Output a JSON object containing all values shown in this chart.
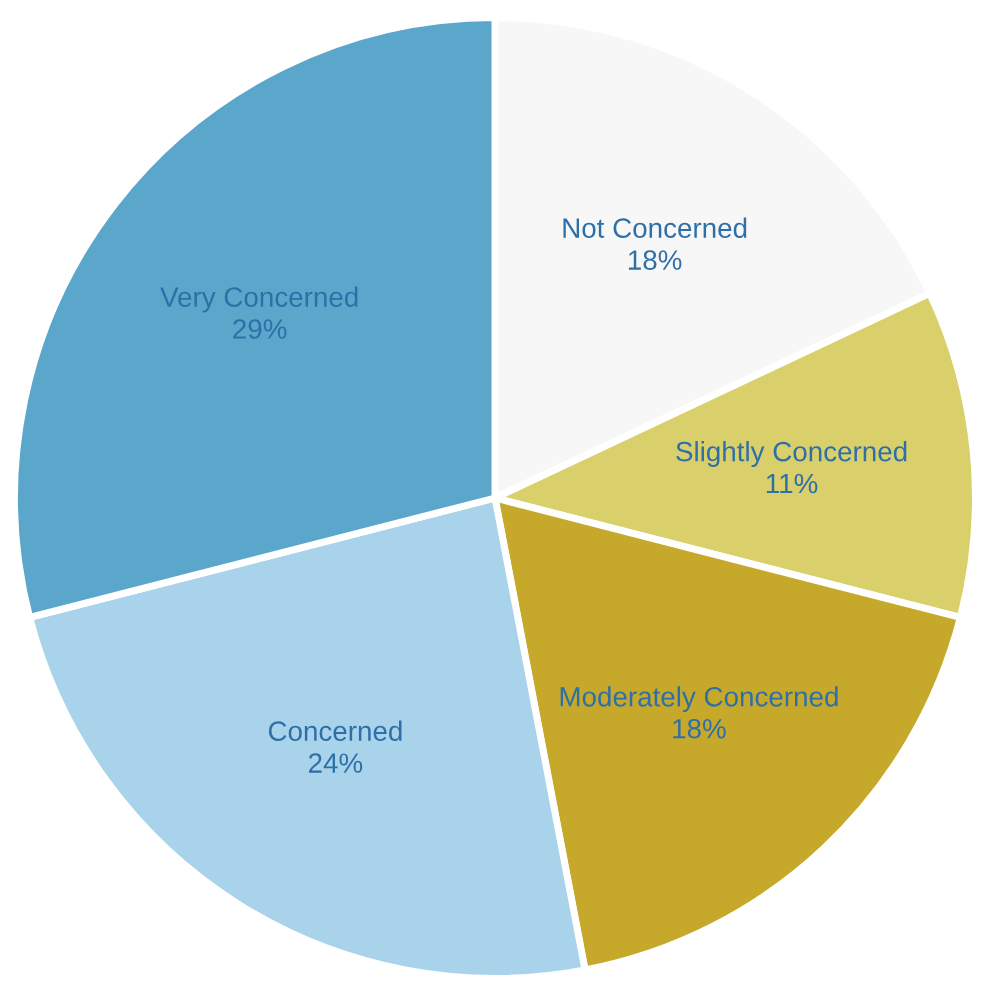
{
  "chart_data": {
    "type": "pie",
    "categories": [
      "Not Concerned",
      "Slightly Concerned",
      "Moderately Concerned",
      "Concerned",
      "Very Concerned"
    ],
    "values": [
      18,
      11,
      18,
      24,
      29
    ],
    "colors": [
      "#f7f7f7",
      "#d9cf6b",
      "#c6a92b",
      "#a8d3ea",
      "#5ba7cc"
    ],
    "value_labels": [
      "18%",
      "11%",
      "18%",
      "24%",
      "29%"
    ]
  }
}
